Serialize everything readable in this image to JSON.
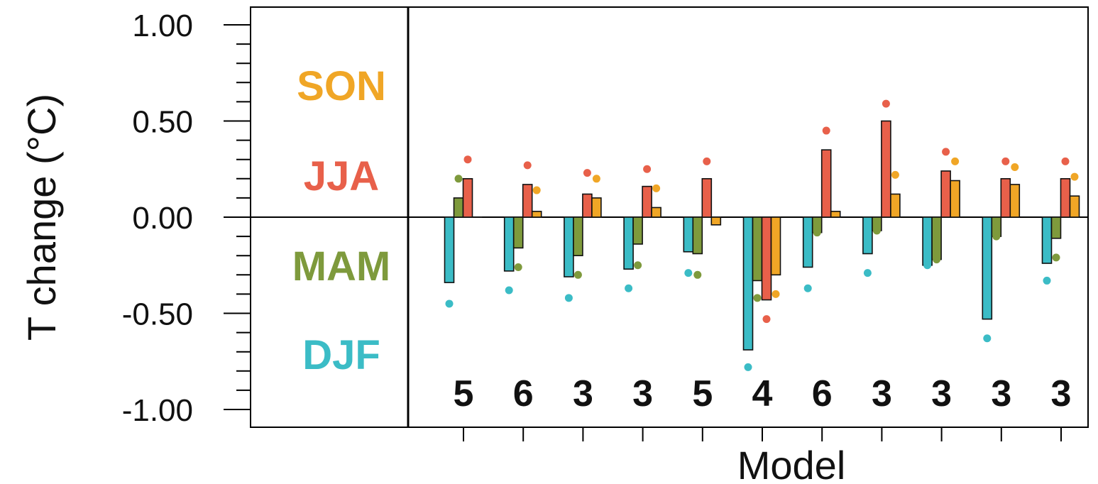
{
  "chart_data": {
    "type": "bar",
    "title": "",
    "xlabel": "Model",
    "ylabel": "T change (°C)",
    "ylim": [
      -1.08,
      1.1
    ],
    "yticks": [
      1.0,
      0.5,
      0.0,
      -0.5,
      -1.0
    ],
    "ytick_labels": [
      "1.00",
      "0.50",
      "0.00",
      "-0.50",
      "-1.00"
    ],
    "grid": false,
    "legend_placement": "left panel",
    "categories": [
      "5",
      "6",
      "3",
      "3",
      "5",
      "4",
      "6",
      "3",
      "3",
      "3",
      "3"
    ],
    "category_labels": [
      "5",
      "6",
      "3",
      "3",
      "5",
      "4",
      "6",
      "3",
      "3",
      "3",
      "3"
    ],
    "series": [
      {
        "name": "DJF",
        "color": "#3bbcc6",
        "values": [
          -0.34,
          -0.28,
          -0.31,
          -0.27,
          -0.18,
          -0.69,
          -0.26,
          -0.19,
          -0.25,
          -0.53,
          -0.24
        ],
        "dots": [
          -0.45,
          -0.38,
          -0.42,
          -0.37,
          -0.29,
          -0.78,
          -0.37,
          -0.29,
          -0.25,
          -0.63,
          -0.33
        ]
      },
      {
        "name": "MAM",
        "color": "#7e9a3c",
        "values": [
          0.1,
          -0.16,
          -0.2,
          -0.14,
          -0.19,
          -0.33,
          -0.08,
          -0.07,
          -0.22,
          -0.1,
          -0.11
        ],
        "dots": [
          0.2,
          -0.26,
          -0.3,
          -0.25,
          -0.3,
          -0.42,
          -0.08,
          -0.07,
          -0.22,
          -0.1,
          -0.21
        ]
      },
      {
        "name": "JJA",
        "color": "#e8604a",
        "values": [
          0.2,
          0.17,
          0.12,
          0.16,
          0.2,
          -0.43,
          0.35,
          0.5,
          0.24,
          0.2,
          0.2
        ],
        "dots": [
          0.3,
          0.27,
          0.23,
          0.25,
          0.29,
          -0.53,
          0.45,
          0.59,
          0.34,
          0.29,
          0.29
        ]
      },
      {
        "name": "SON",
        "color": "#f0a626",
        "values": [
          0.0,
          0.03,
          0.1,
          0.05,
          -0.04,
          -0.3,
          0.03,
          0.12,
          0.19,
          0.17,
          0.11
        ],
        "dots": [
          null,
          0.14,
          0.2,
          0.15,
          null,
          -0.4,
          null,
          0.22,
          0.29,
          0.26,
          0.21
        ]
      }
    ]
  },
  "legend": {
    "labels": [
      "SON",
      "JJA",
      "MAM",
      "DJF"
    ],
    "colors": [
      "#f0a626",
      "#e8604a",
      "#7e9a3c",
      "#3bbcc6"
    ]
  }
}
